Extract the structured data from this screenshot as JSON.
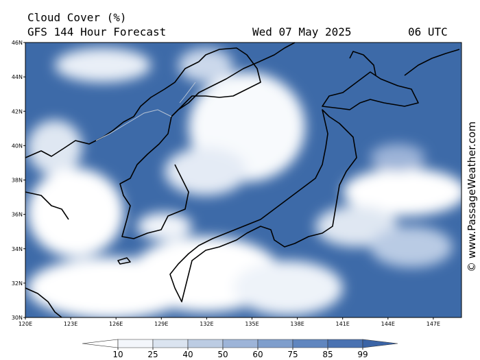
{
  "header": {
    "title": "Cloud Cover (%)",
    "model": "GFS 144 Hour Forecast",
    "date": "Wed 07 May 2025",
    "time": "06 UTC"
  },
  "map": {
    "lat_labels": [
      "46N",
      "44N",
      "42N",
      "40N",
      "38N",
      "36N",
      "34N",
      "32N",
      "30N"
    ],
    "lon_labels": [
      "120E",
      "123E",
      "126E",
      "129E",
      "132E",
      "135E",
      "138E",
      "141E",
      "144E",
      "147E"
    ]
  },
  "colorbar": {
    "ticks": [
      10,
      25,
      40,
      50,
      60,
      75,
      85,
      99
    ],
    "colors": [
      "#ffffff",
      "#f3f6fb",
      "#dbe4f0",
      "#bccce3",
      "#9db4d8",
      "#7f9ecc",
      "#6086bf",
      "#4a72b1",
      "#3b64a6"
    ]
  },
  "credit": "© www.PassageWeather.com"
}
